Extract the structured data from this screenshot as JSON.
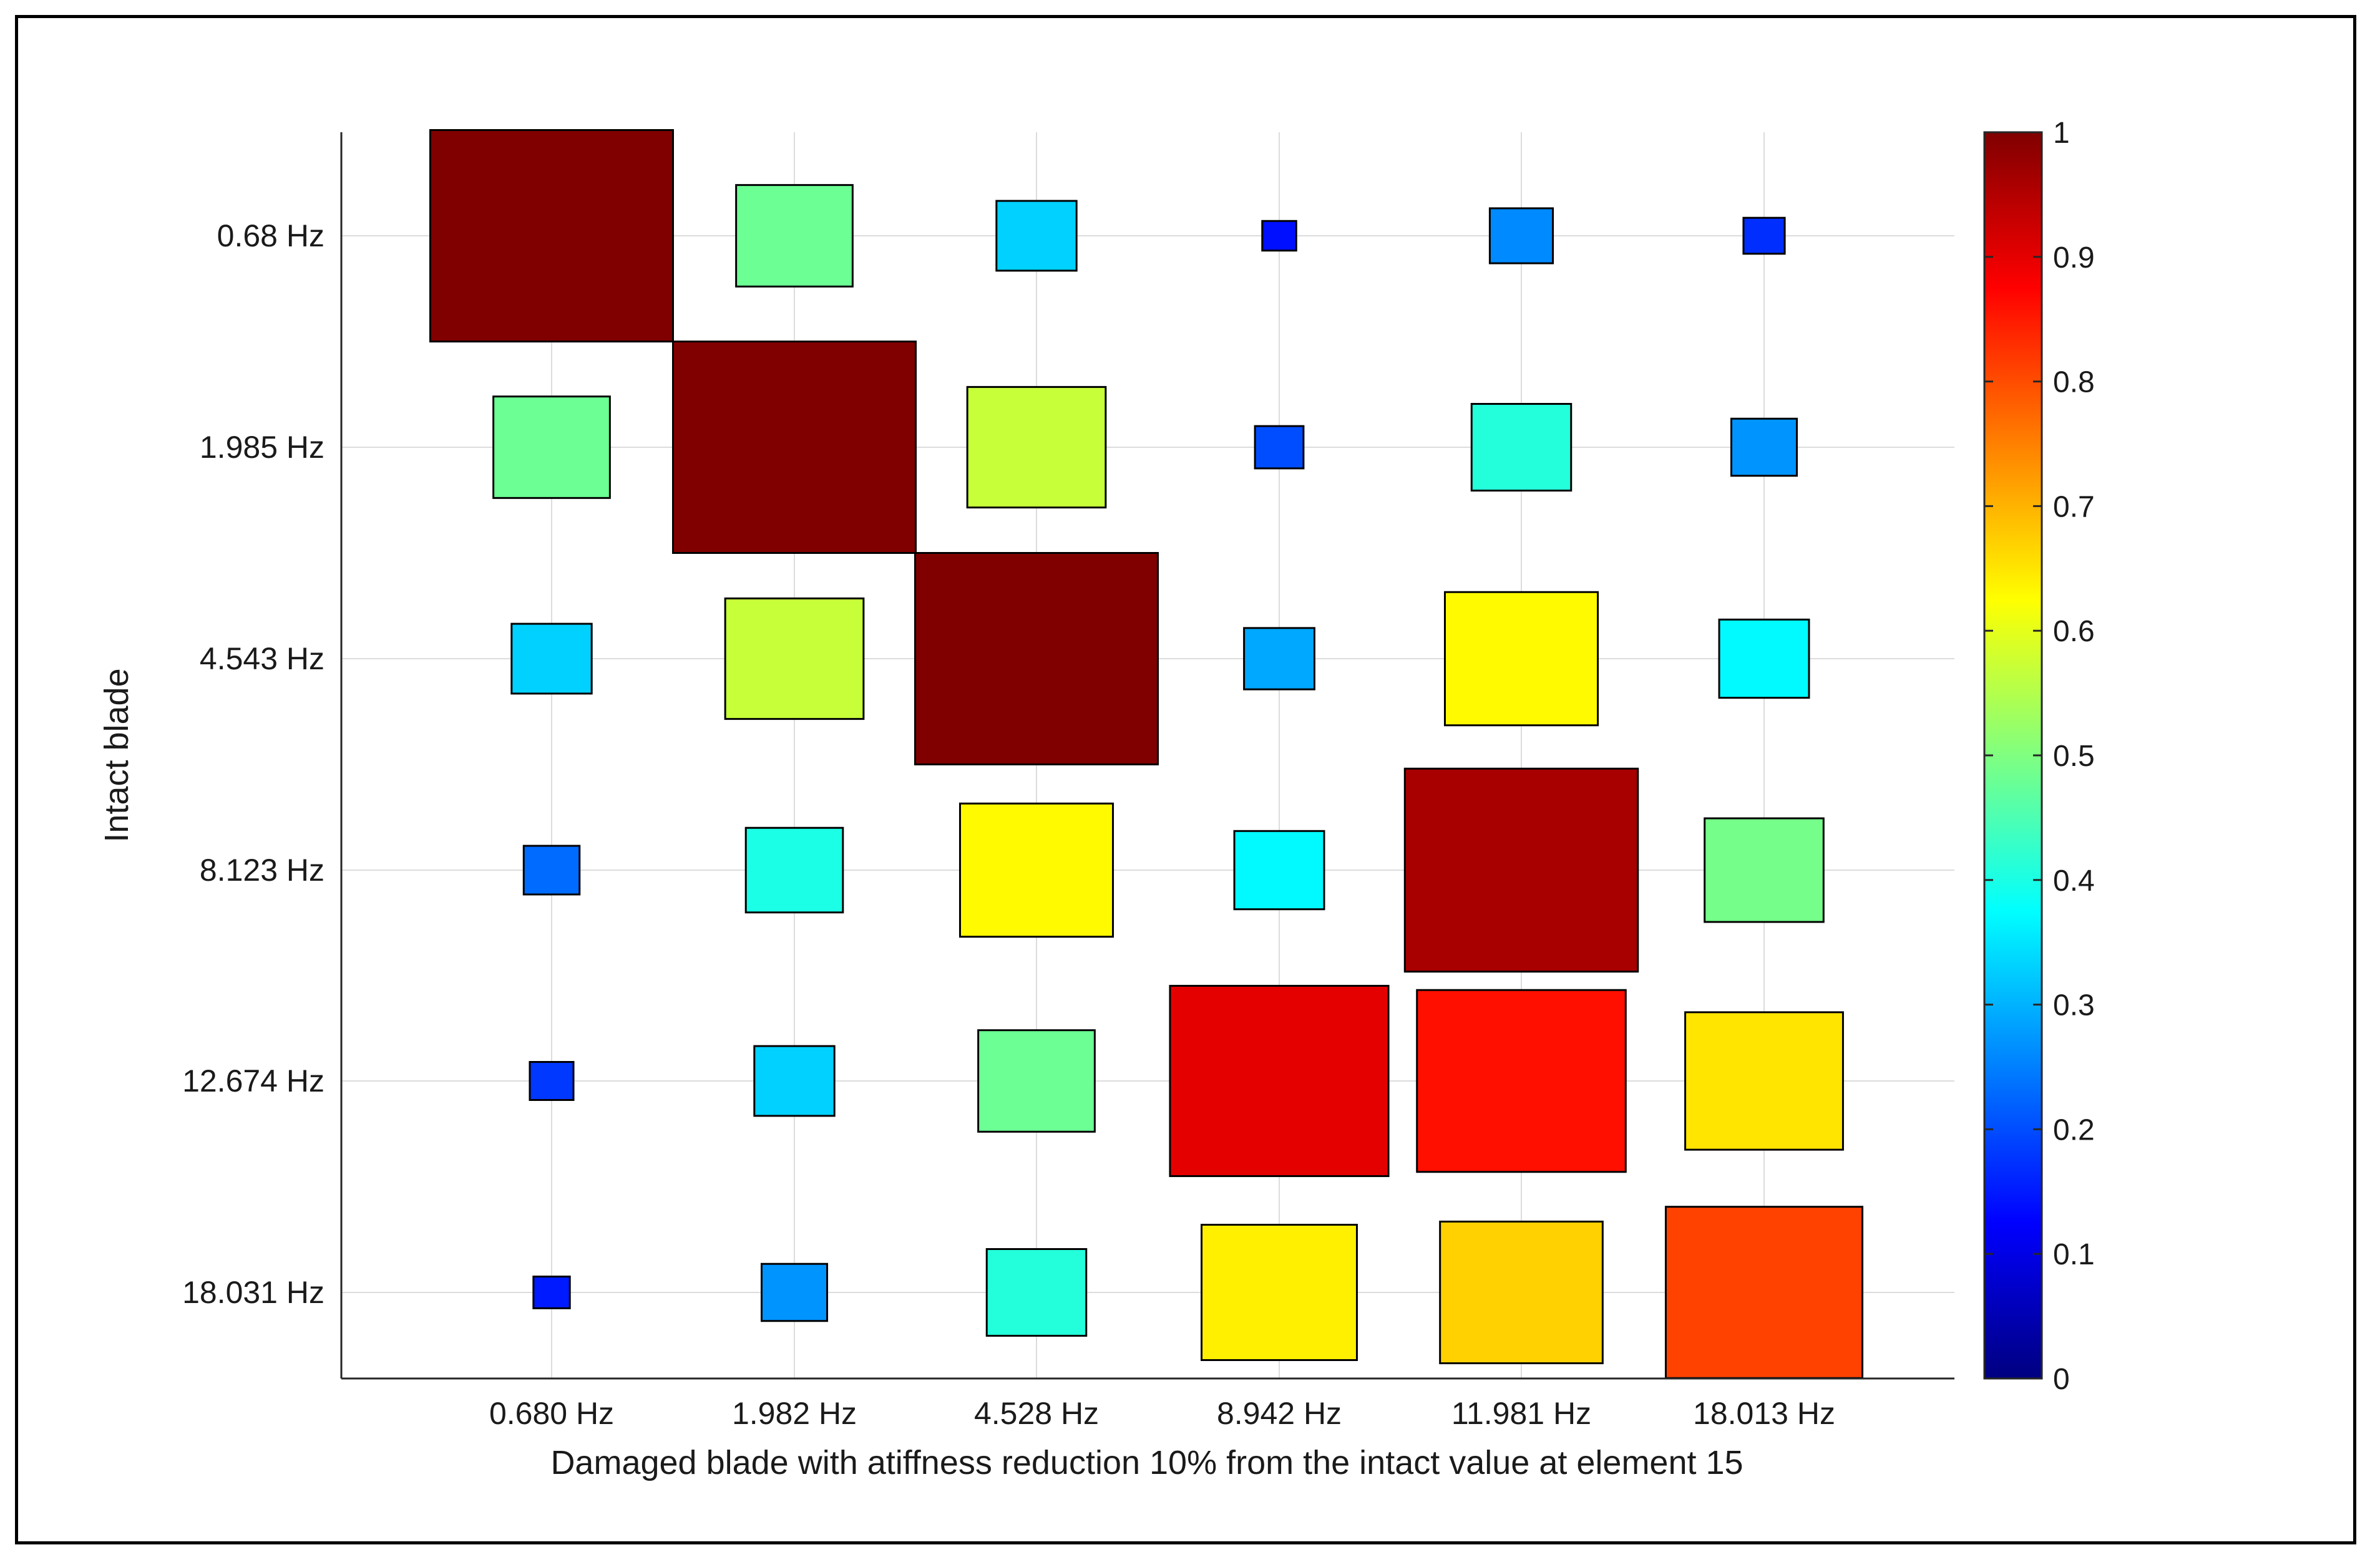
{
  "chart_data": {
    "type": "heatmap",
    "title": "",
    "xlabel": "Damaged blade with atiffness reduction 10% from the intact value at element 15",
    "ylabel": "Intact blade",
    "x_categories": [
      "0.680 Hz",
      "1.982 Hz",
      "4.528 Hz",
      "8.942 Hz",
      "11.981 Hz",
      "18.013 Hz"
    ],
    "y_categories": [
      "0.68 Hz",
      "1.985 Hz",
      "4.543 Hz",
      "8.123 Hz",
      "12.674 Hz",
      "18.031 Hz"
    ],
    "values": [
      [
        1.0,
        0.48,
        0.33,
        0.14,
        0.26,
        0.17
      ],
      [
        0.48,
        1.0,
        0.57,
        0.2,
        0.41,
        0.27
      ],
      [
        0.33,
        0.57,
        1.0,
        0.29,
        0.63,
        0.37
      ],
      [
        0.23,
        0.4,
        0.63,
        0.37,
        0.96,
        0.49
      ],
      [
        0.18,
        0.33,
        0.48,
        0.9,
        0.86,
        0.65
      ],
      [
        0.15,
        0.27,
        0.41,
        0.64,
        0.67,
        0.81
      ]
    ],
    "colorbar": {
      "min": 0,
      "max": 1,
      "ticks": [
        0,
        0.1,
        0.2,
        0.3,
        0.4,
        0.5,
        0.6,
        0.7,
        0.8,
        0.9,
        1
      ],
      "colormap": "jet"
    },
    "grid": true,
    "cell_size_encodes_value": true
  }
}
